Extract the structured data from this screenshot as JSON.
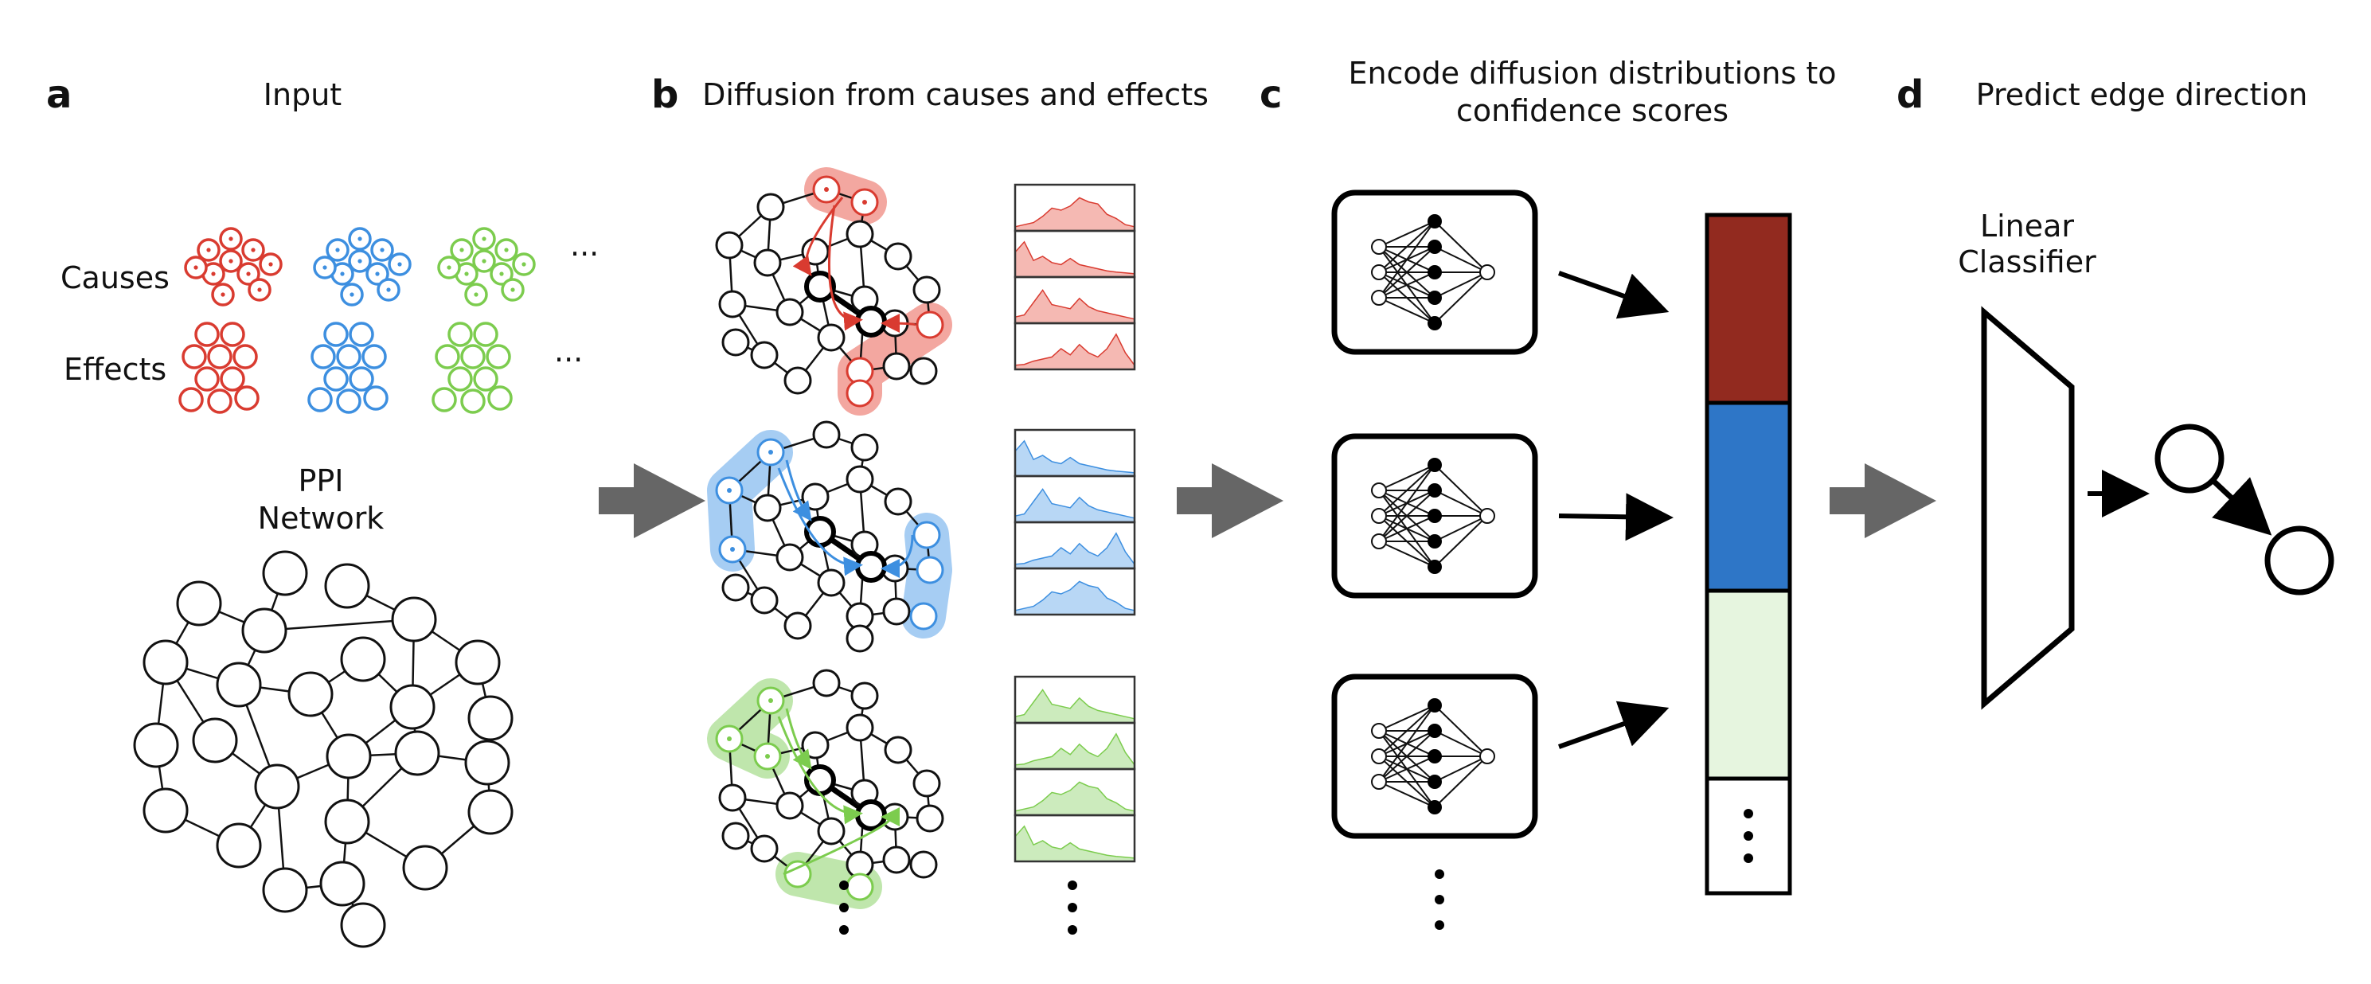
{
  "panels": {
    "a": {
      "letter": "a",
      "title": "Input",
      "causes_label": "Causes",
      "effects_label": "Effects",
      "network_label_line1": "PPI",
      "network_label_line2": "Network",
      "ellipsis": "···"
    },
    "b": {
      "letter": "b",
      "title": "Diffusion from causes and effects"
    },
    "c": {
      "letter": "c",
      "title_line1": "Encode diffusion distributions to",
      "title_line2": "confidence scores"
    },
    "d": {
      "letter": "d",
      "title": "Predict edge direction",
      "classifier_line1": "Linear",
      "classifier_line2": "Classifier"
    }
  },
  "colors": {
    "red": "#d93b30",
    "blue": "#3d8fe0",
    "green": "#7ccc4e",
    "red_fill": "#f3a7a0",
    "blue_fill": "#a6cdf3",
    "green_fill": "#bfe6ac",
    "score_red": "#922a1f",
    "score_blue": "#2e76c7",
    "score_green": "#e6f5df",
    "arrow_gray": "#666666"
  },
  "icons": [
    "neural-network-icon",
    "diffusion-histogram-icon",
    "linear-classifier-icon",
    "directed-edge-icon"
  ]
}
